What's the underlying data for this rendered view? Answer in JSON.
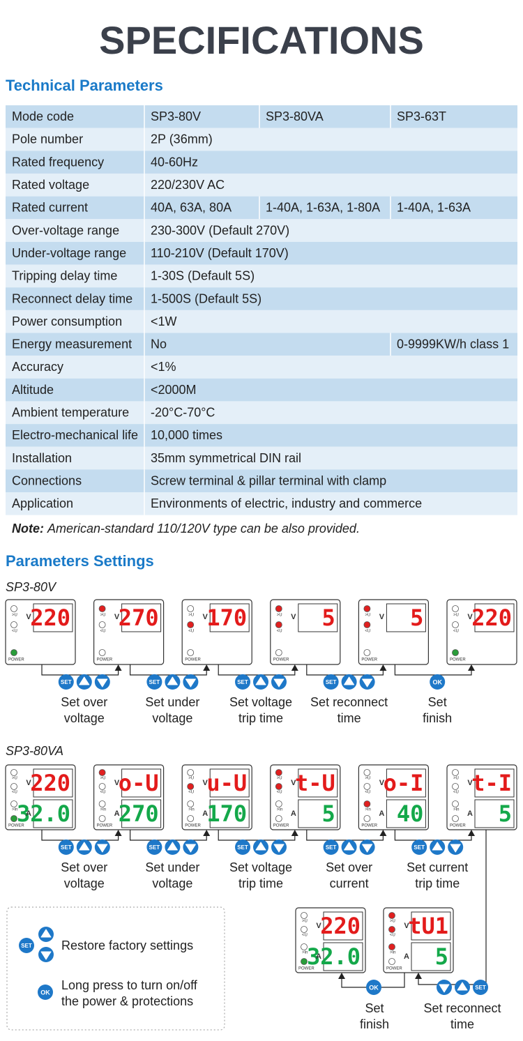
{
  "title": "SPECIFICATIONS",
  "technical": {
    "heading": "Technical Parameters",
    "rows": [
      [
        "Mode code",
        "SP3-80V",
        "SP3-80VA",
        "SP3-63T"
      ],
      [
        "Pole number",
        "2P (36mm)"
      ],
      [
        "Rated frequency",
        "40-60Hz"
      ],
      [
        "Rated voltage",
        "220/230V AC"
      ],
      [
        "Rated current",
        "40A, 63A, 80A",
        "1-40A, 1-63A, 1-80A",
        "1-40A, 1-63A"
      ],
      [
        "Over-voltage range",
        "230-300V (Default 270V)"
      ],
      [
        "Under-voltage range",
        "110-210V (Default 170V)"
      ],
      [
        "Tripping delay time",
        "1-30S (Default 5S)"
      ],
      [
        "Reconnect delay time",
        "1-500S (Default 5S)"
      ],
      [
        "Power consumption",
        "<1W"
      ],
      [
        "Energy measurement",
        "No",
        "0-9999KW/h class 1"
      ],
      [
        "Accuracy",
        "<1%"
      ],
      [
        "Altitude",
        "<2000M"
      ],
      [
        "Ambient temperature",
        "-20°C-70°C"
      ],
      [
        "Electro-mechanical life",
        "10,000 times"
      ],
      [
        "Installation",
        "35mm symmetrical DIN rail"
      ],
      [
        "Connections",
        "Screw terminal & pillar terminal with clamp"
      ],
      [
        "Application",
        "Environments of electric, industry and commerce"
      ]
    ]
  },
  "note": {
    "label": "Note:",
    "text": "American-standard 110/120V type can be also provided."
  },
  "settings": {
    "heading": "Parameters Settings",
    "device_labels": {
      "over": ">U",
      "under": "<U",
      "current": ">In",
      "power": "POWER",
      "volt": "V",
      "amp": "A"
    },
    "buttons": {
      "set": "SET",
      "ok": "OK"
    },
    "flows": [
      {
        "model": "SP3-80V",
        "devices": [
          {
            "v": "220",
            "lit": [
              "power"
            ]
          },
          {
            "v": "270",
            "lit": [
              "over"
            ]
          },
          {
            "v": "170",
            "lit": [
              "under"
            ]
          },
          {
            "v": "5",
            "lit": [
              "over",
              "under"
            ]
          },
          {
            "v": "5",
            "lit": [
              "over",
              "under"
            ]
          },
          {
            "v": "220",
            "lit": [
              "power"
            ]
          }
        ],
        "steps": [
          {
            "buttons": [
              "set",
              "up",
              "down"
            ],
            "caption": [
              "Set over",
              "voltage"
            ]
          },
          {
            "buttons": [
              "set",
              "up",
              "down"
            ],
            "caption": [
              "Set under",
              "voltage"
            ]
          },
          {
            "buttons": [
              "set",
              "up",
              "down"
            ],
            "caption": [
              "Set voltage",
              "trip time"
            ]
          },
          {
            "buttons": [
              "set",
              "up",
              "down"
            ],
            "caption": [
              "Set reconnect",
              "time"
            ]
          },
          {
            "buttons": [
              "ok"
            ],
            "caption": [
              "Set",
              "finish"
            ]
          }
        ]
      },
      {
        "model": "SP3-80VA",
        "devices": [
          {
            "v": "220",
            "a": "32.0",
            "lit": [
              "power"
            ]
          },
          {
            "v": "o-U",
            "a": "270",
            "lit": [
              "over"
            ]
          },
          {
            "v": "u-U",
            "a": "170",
            "lit": [
              "under"
            ]
          },
          {
            "v": "t-U",
            "a": "5",
            "lit": [
              "over",
              "under"
            ]
          },
          {
            "v": "o-I",
            "a": "40",
            "lit": [
              "current"
            ]
          },
          {
            "v": "t-I",
            "a": "5",
            "lit": []
          }
        ],
        "steps": [
          {
            "buttons": [
              "set",
              "up",
              "down"
            ],
            "caption": [
              "Set over",
              "voltage"
            ]
          },
          {
            "buttons": [
              "set",
              "up",
              "down"
            ],
            "caption": [
              "Set under",
              "voltage"
            ]
          },
          {
            "buttons": [
              "set",
              "up",
              "down"
            ],
            "caption": [
              "Set voltage",
              "trip time"
            ]
          },
          {
            "buttons": [
              "set",
              "up",
              "down"
            ],
            "caption": [
              "Set over",
              "current"
            ]
          },
          {
            "buttons": [
              "set",
              "up",
              "down"
            ],
            "caption": [
              "Set current",
              "trip time"
            ]
          }
        ]
      }
    ],
    "continuation": {
      "devices": [
        {
          "v": "220",
          "a": "32.0",
          "lit": [
            "power"
          ]
        },
        {
          "v": "tU1",
          "a": "5",
          "lit": [
            "over",
            "under",
            "current"
          ]
        }
      ],
      "steps": [
        {
          "buttons": [
            "ok"
          ],
          "caption": [
            "Set",
            "finish"
          ]
        },
        {
          "buttons": [
            "down",
            "up",
            "set"
          ],
          "caption": [
            "Set reconnect",
            "time"
          ]
        }
      ]
    }
  },
  "legend": [
    {
      "buttons": [
        "set",
        "up",
        "down"
      ],
      "text": [
        "Restore factory settings"
      ]
    },
    {
      "buttons": [
        "ok"
      ],
      "text": [
        "Long press to turn on/off",
        "the power & protections"
      ]
    }
  ]
}
